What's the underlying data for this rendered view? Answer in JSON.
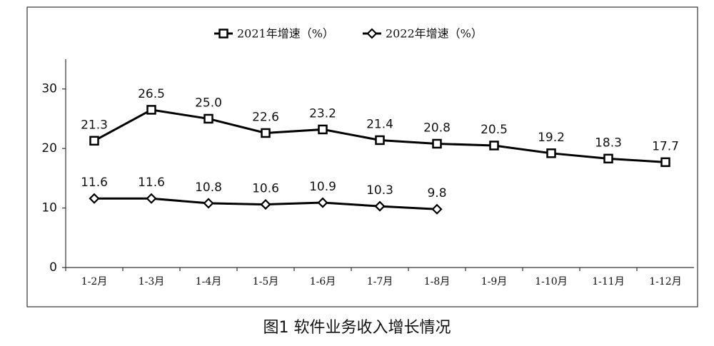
{
  "chart_data": {
    "type": "line",
    "title": "图1  软件业务收入增长情况",
    "categories": [
      "1-2月",
      "1-3月",
      "1-4月",
      "1-5月",
      "1-6月",
      "1-7月",
      "1-8月",
      "1-9月",
      "1-10月",
      "1-11月",
      "1-12月"
    ],
    "series": [
      {
        "name": "2021年增速（%）",
        "color": "#000000",
        "marker": "square",
        "values": [
          21.3,
          26.5,
          25.0,
          22.6,
          23.2,
          21.4,
          20.8,
          20.5,
          19.2,
          18.3,
          17.7
        ],
        "value_labels": [
          "21.3",
          "26.5",
          "25.0",
          "22.6",
          "23.2",
          "21.4",
          "20.8",
          "20.5",
          "19.2",
          "18.3",
          "17.7"
        ]
      },
      {
        "name": "2022年增速（%）",
        "color": "#000000",
        "marker": "diamond",
        "values": [
          11.6,
          11.6,
          10.8,
          10.6,
          10.9,
          10.3,
          9.8,
          null,
          null,
          null,
          null
        ],
        "value_labels": [
          "11.6",
          "11.6",
          "10.8",
          "10.6",
          "10.9",
          "10.3",
          "9.8",
          null,
          null,
          null,
          null
        ]
      }
    ],
    "ylim": [
      0,
      35
    ],
    "yticks": [
      0,
      10,
      20,
      30
    ],
    "legend": "top"
  }
}
